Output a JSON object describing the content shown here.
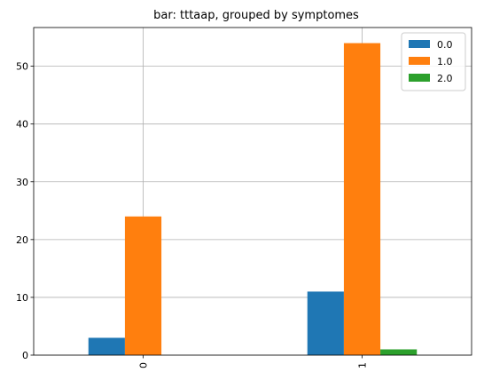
{
  "chart_data": {
    "type": "bar",
    "title": "bar: tttaap, grouped by symptomes",
    "categories": [
      "0",
      "1"
    ],
    "series": [
      {
        "name": "0.0",
        "values": [
          3,
          11
        ],
        "color": "#1f77b4"
      },
      {
        "name": "1.0",
        "values": [
          24,
          54
        ],
        "color": "#ff7f0e"
      },
      {
        "name": "2.0",
        "values": [
          0,
          1
        ],
        "color": "#2ca02c"
      }
    ],
    "xlabel": "",
    "ylabel": "",
    "ylim": [
      0,
      56.7
    ],
    "yticks": [
      "0",
      "10",
      "20",
      "30",
      "40",
      "50"
    ],
    "grid": true,
    "legend_position": "top-right"
  }
}
